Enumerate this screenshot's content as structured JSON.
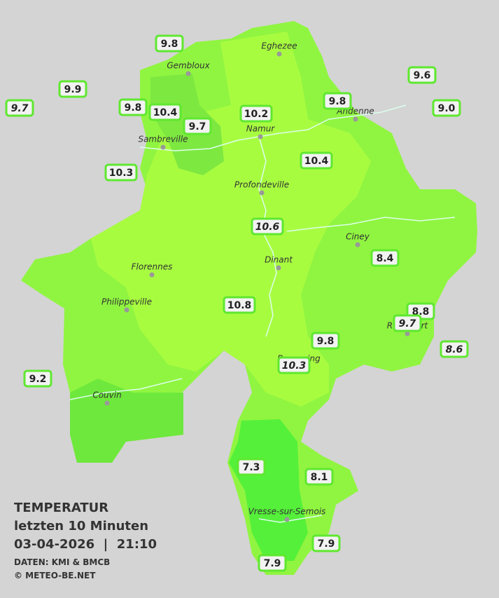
{
  "towns": [
    "Eghezee",
    "Gembloux",
    "Andenne",
    "Namur",
    "Sambreville",
    "Profondeville",
    "Ciney",
    "Florennes",
    "Dinant",
    "Philippeville",
    "Rochefort",
    "Beauraing",
    "Couvin",
    "Vresse-sur-Semois"
  ],
  "stations": [
    "9.8",
    "9.9",
    "9.7",
    "9.8",
    "10.4",
    "9.7",
    "10.2",
    "9.8",
    "9.6",
    "9.0",
    "10.3",
    "10.4",
    "10.6",
    "8.4",
    "10.8",
    "8.8",
    "9.7",
    "8.6",
    "9.8",
    "10.3",
    "9.2",
    "7.3",
    "8.1",
    "7.9",
    "7.9"
  ],
  "info": {
    "title": "TEMPERATUR",
    "subtitle": "letzten 10 Minuten",
    "datetime": "03-04-2026  |  21:10",
    "source": "DATEN: KMI & BMCB",
    "copyright": "© METEO-BE.NET"
  }
}
